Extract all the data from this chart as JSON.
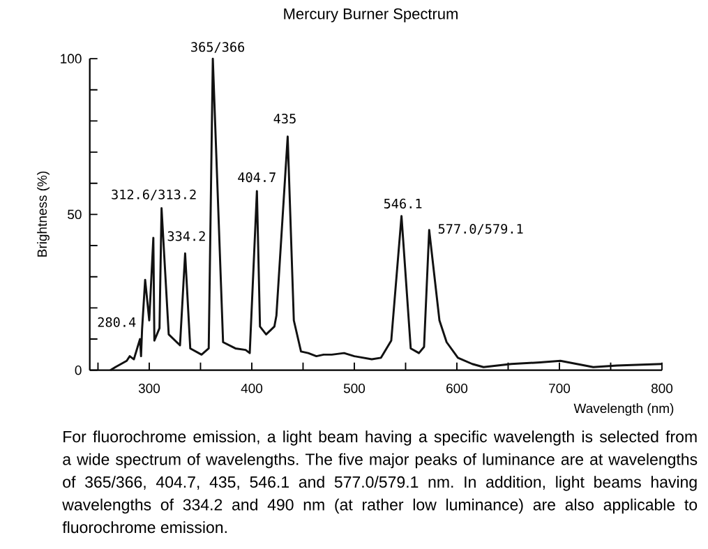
{
  "chart_data": {
    "type": "line",
    "title": "Mercury Burner Spectrum",
    "xlabel": "Wavelength (nm)",
    "ylabel": "Brightness (%)",
    "x": [
      262,
      267,
      278,
      281,
      285,
      291,
      292,
      293,
      296,
      300,
      304,
      305,
      310,
      312,
      319,
      330,
      335,
      340,
      351,
      358,
      362,
      372,
      384,
      394,
      398,
      405,
      408,
      414,
      422,
      424,
      435,
      441,
      448,
      455,
      463,
      470,
      478,
      490,
      500,
      517,
      526,
      536,
      546,
      555,
      563,
      568,
      573,
      583,
      590,
      601,
      615,
      626,
      653,
      681,
      701,
      717,
      733,
      756,
      800
    ],
    "series": [
      {
        "color": "#111111",
        "values": [
          0,
          1,
          3,
          4.5,
          3.5,
          10,
          4.5,
          13,
          29,
          16,
          42.5,
          9.5,
          13.5,
          52,
          11.5,
          8,
          37.5,
          7,
          5,
          7,
          100,
          9,
          7,
          6.5,
          5.5,
          57.5,
          14,
          11.5,
          14,
          17.5,
          75,
          16,
          6,
          5.5,
          4.5,
          5,
          5,
          5.5,
          4.5,
          3.5,
          4,
          9.5,
          49.5,
          7,
          5.5,
          7.5,
          45,
          16,
          9,
          4,
          2,
          1,
          2,
          2.5,
          3,
          2,
          1,
          1.5,
          2
        ]
      }
    ],
    "xlim": [
      242,
      800
    ],
    "ylim": [
      0,
      100
    ],
    "xticks": [
      {
        "value": 250,
        "label": null
      },
      300,
      {
        "value": 350,
        "label": null
      },
      400,
      {
        "value": 450,
        "label": null
      },
      500,
      {
        "value": 550,
        "label": null
      },
      600,
      {
        "value": 650,
        "label": null
      },
      700,
      {
        "value": 750,
        "label": null
      },
      800
    ],
    "yticks": [
      0,
      {
        "value": 10,
        "label": null
      },
      {
        "value": 20,
        "label": null
      },
      {
        "value": 30,
        "label": null
      },
      {
        "value": 40,
        "label": null
      },
      50,
      {
        "value": 60,
        "label": null
      },
      {
        "value": 70,
        "label": null
      },
      {
        "value": 80,
        "label": null
      },
      {
        "value": 90,
        "label": null
      },
      100
    ],
    "line_style": "solid",
    "annotations": [
      {
        "text": "280.4",
        "x": 281,
        "y": 4.5
      },
      {
        "text": "312.6/313.2",
        "x": 312,
        "y": 52
      },
      {
        "text": "334.2",
        "x": 335,
        "y": 37.5
      },
      {
        "text": "365/366",
        "x": 362,
        "y": 100
      },
      {
        "text": "404.7",
        "x": 405,
        "y": 57.5
      },
      {
        "text": "435",
        "x": 435,
        "y": 75
      },
      {
        "text": "546.1",
        "x": 546,
        "y": 49.5
      },
      {
        "text": "577.0/579.1",
        "x": 573,
        "y": 45
      },
      "For fluorochrome emission, a light beam having a specific wavelength is selected from a wide spectrum of wavelengths. The five major peaks of luminance are at wavelengths of 365/366, 404.7, 435, 546.1 and 577.0/579.1 nm. In addition, light beams having wavelengths of 334.2 and 490 nm (at rather low luminance) are also applicable to fluorochrome emission."
    ]
  }
}
